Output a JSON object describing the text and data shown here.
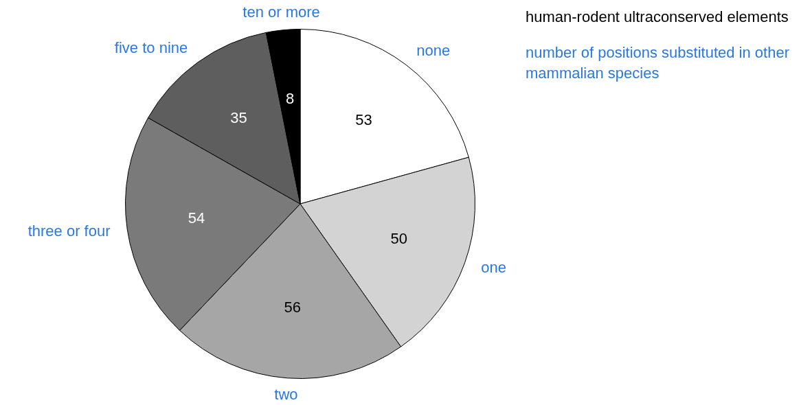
{
  "chart_data": {
    "type": "pie",
    "title": "human-rodent ultraconserved elements",
    "subtitle": "number of positions substituted in other mammalian species",
    "categories": [
      "none",
      "one",
      "two",
      "three or four",
      "five to nine",
      "ten or more"
    ],
    "values": [
      53,
      50,
      56,
      54,
      35,
      8
    ],
    "colors": [
      "#ffffff",
      "#d3d3d3",
      "#a6a6a6",
      "#7a7a7a",
      "#5e5e5e",
      "#000000"
    ],
    "data_labels": true,
    "legend": false
  }
}
